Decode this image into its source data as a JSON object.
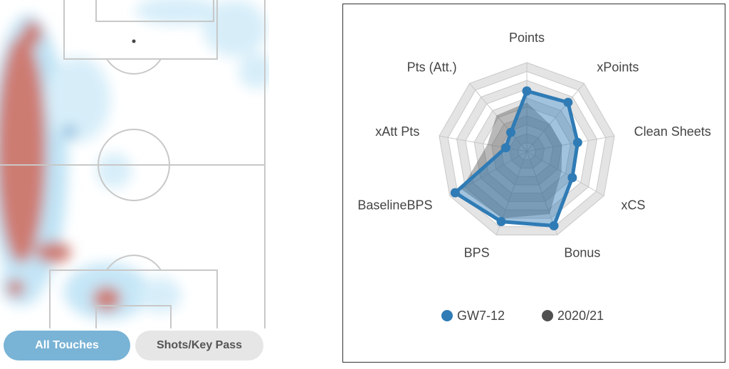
{
  "buttons": [
    "All Touches",
    "Shots/Key Pass"
  ],
  "chart_data": {
    "type": "radar",
    "categories": [
      "Points",
      "xPoints",
      "Clean Sheets",
      "xCS",
      "Bonus",
      "BPS",
      "BaselineBPS",
      "xAtt Pts",
      "Pts (Att.)"
    ],
    "series": [
      {
        "name": "GW7-12",
        "color": "#2f7bb5",
        "marker": true,
        "values": [
          6.8,
          7.2,
          5.8,
          5.9,
          8.9,
          8.4,
          9.3,
          2.4,
          2.8
        ]
      },
      {
        "name": "2020/21",
        "color": "#505050",
        "marker": false,
        "values": [
          5.5,
          4,
          4,
          4.5,
          7.5,
          8,
          8.5,
          4.5,
          5.3
        ]
      }
    ],
    "rlim": [
      0,
      10
    ],
    "rticks": [
      1,
      2,
      3,
      4,
      5,
      6,
      7,
      8,
      9,
      10
    ],
    "grid": true,
    "legend": "bottom"
  }
}
